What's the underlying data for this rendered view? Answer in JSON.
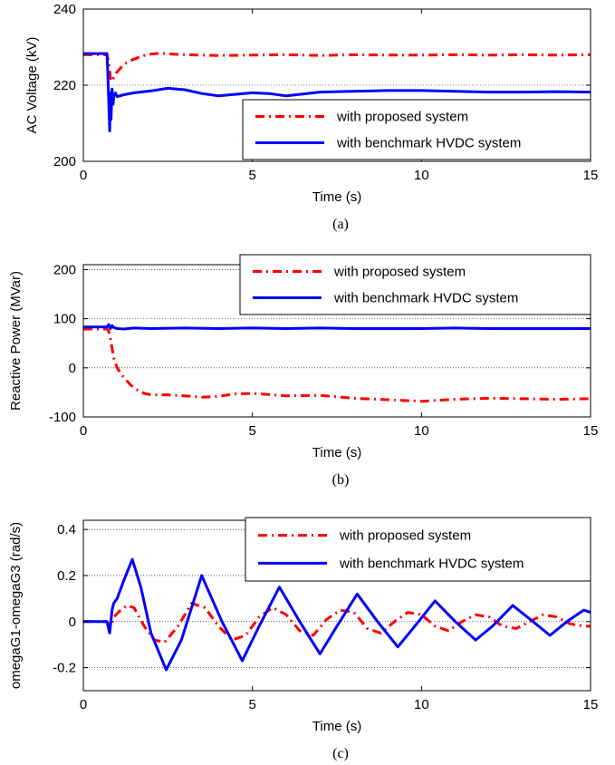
{
  "chart_data": [
    {
      "type": "line",
      "caption": "(a)",
      "xlabel": "Time (s)",
      "ylabel": "AC Voltage (kV)",
      "xlim": [
        0,
        15
      ],
      "ylim": [
        200,
        240
      ],
      "xticks": [
        0,
        5,
        10,
        15
      ],
      "yticks": [
        200,
        220,
        240
      ],
      "grid_y": [
        220
      ],
      "legend_position": "lower-right",
      "series": [
        {
          "name": "with proposed system",
          "color": "#ff0000",
          "style": "dashdot",
          "x": [
            0,
            0.7,
            0.75,
            0.8,
            0.85,
            0.9,
            1.0,
            1.1,
            1.2,
            1.4,
            1.6,
            1.8,
            2.0,
            2.3,
            2.6,
            3.0,
            4.0,
            5.0,
            6.0,
            7.0,
            8.0,
            9.0,
            10.0,
            11.0,
            12.0,
            13.0,
            14.0,
            15.0
          ],
          "y": [
            228,
            228,
            226,
            222,
            221,
            222,
            223.5,
            224.5,
            225.5,
            226.5,
            227.2,
            227.8,
            228.2,
            228.4,
            228.2,
            228.0,
            227.8,
            227.9,
            228.0,
            227.8,
            228.0,
            227.9,
            227.9,
            228.0,
            227.9,
            228.0,
            227.9,
            228.0
          ]
        },
        {
          "name": "with benchmark HVDC system",
          "color": "#0000ff",
          "style": "solid",
          "x": [
            0,
            0.7,
            0.72,
            0.75,
            0.78,
            0.8,
            0.82,
            0.85,
            0.88,
            0.9,
            0.95,
            1.0,
            1.2,
            1.5,
            2.0,
            2.5,
            3.0,
            3.5,
            4.0,
            5.0,
            5.5,
            6.0,
            7.0,
            8.0,
            9.0,
            10.0,
            11.0,
            12.0,
            13.0,
            14.0,
            15.0
          ],
          "y": [
            228.3,
            228.3,
            224,
            216,
            208,
            218,
            211,
            219,
            215,
            217,
            218,
            217,
            217.5,
            218,
            218.5,
            219.2,
            218.8,
            217.8,
            217.2,
            218,
            217.8,
            217.2,
            218.2,
            218.4,
            218.6,
            218.6,
            218.4,
            218.2,
            218.2,
            218.3,
            218.2
          ]
        }
      ]
    },
    {
      "type": "line",
      "caption": "(b)",
      "xlabel": "Time (s)",
      "ylabel": "Reactive Power (MVar)",
      "xlim": [
        0,
        15
      ],
      "ylim": [
        -100,
        210
      ],
      "xticks": [
        0,
        5,
        10,
        15
      ],
      "yticks": [
        -100,
        0,
        100,
        200
      ],
      "grid_y": [
        0,
        100,
        200
      ],
      "legend_position": "top-right",
      "series": [
        {
          "name": "with proposed system",
          "color": "#ff0000",
          "style": "dashdot",
          "x": [
            0,
            0.7,
            0.75,
            0.8,
            0.85,
            0.9,
            1.0,
            1.2,
            1.4,
            1.6,
            1.8,
            2.0,
            2.5,
            3.0,
            3.5,
            4.0,
            4.5,
            5.0,
            6.0,
            7.0,
            8.0,
            9.0,
            10.0,
            11.0,
            12.0,
            13.0,
            14.0,
            15.0
          ],
          "y": [
            79,
            79,
            75,
            60,
            40,
            20,
            0,
            -20,
            -35,
            -45,
            -52,
            -55,
            -55,
            -57,
            -60,
            -58,
            -53,
            -52,
            -57,
            -56,
            -62,
            -65,
            -68,
            -64,
            -62,
            -63,
            -64,
            -63
          ]
        },
        {
          "name": "with benchmark HVDC system",
          "color": "#0000ff",
          "style": "solid",
          "x": [
            0,
            0.7,
            0.75,
            0.8,
            0.85,
            0.9,
            1.0,
            1.2,
            1.5,
            2.0,
            3.0,
            4.0,
            5.0,
            6.0,
            7.0,
            8.0,
            9.0,
            10.0,
            11.0,
            12.0,
            13.0,
            14.0,
            15.0
          ],
          "y": [
            83,
            83,
            88,
            80,
            86,
            82,
            80,
            79,
            81,
            80,
            81,
            80,
            81,
            80,
            81,
            80,
            80,
            80,
            81,
            80,
            80,
            80,
            80
          ]
        }
      ]
    },
    {
      "type": "line",
      "caption": "(c)",
      "xlabel": "Time (s)",
      "ylabel": "omegaG1-omegaG3 (rad/s)",
      "xlim": [
        0,
        15
      ],
      "ylim": [
        -0.3,
        0.44
      ],
      "xticks": [
        0,
        5,
        10,
        15
      ],
      "yticks": [
        -0.2,
        0,
        0.2,
        0.4
      ],
      "grid_y": [
        -0.2,
        0,
        0.2,
        0.4
      ],
      "legend_position": "top-right",
      "series": [
        {
          "name": "with proposed system",
          "color": "#ff0000",
          "style": "dashdot",
          "x": [
            0,
            0.7,
            0.8,
            0.9,
            1.1,
            1.3,
            1.5,
            1.8,
            2.1,
            2.4,
            2.8,
            3.2,
            3.6,
            4.0,
            4.4,
            4.8,
            5.2,
            5.6,
            6.0,
            6.4,
            6.8,
            7.2,
            7.6,
            8.0,
            8.4,
            8.8,
            9.2,
            9.6,
            10.0,
            10.4,
            10.8,
            11.2,
            11.6,
            12.0,
            12.4,
            12.8,
            13.2,
            13.6,
            14.0,
            14.4,
            14.8,
            15.0
          ],
          "y": [
            0,
            0,
            -0.02,
            0.02,
            0.05,
            0.07,
            0.06,
            -0.02,
            -0.08,
            -0.09,
            -0.02,
            0.08,
            0.06,
            -0.02,
            -0.08,
            -0.06,
            0.02,
            0.06,
            0.03,
            -0.04,
            -0.06,
            0.01,
            0.05,
            0.04,
            -0.03,
            -0.05,
            0.0,
            0.04,
            0.03,
            -0.02,
            -0.04,
            0.0,
            0.03,
            0.02,
            -0.02,
            -0.03,
            0.0,
            0.03,
            0.02,
            -0.01,
            -0.02,
            -0.02
          ]
        },
        {
          "name": "with benchmark HVDC system",
          "color": "#0000ff",
          "style": "solid",
          "x": [
            0,
            0.7,
            0.78,
            0.85,
            0.9,
            1.0,
            1.2,
            1.45,
            1.7,
            2.0,
            2.45,
            2.9,
            3.5,
            4.1,
            4.7,
            5.2,
            5.8,
            6.4,
            7.0,
            7.5,
            8.1,
            8.7,
            9.3,
            9.8,
            10.4,
            11.0,
            11.6,
            12.1,
            12.7,
            13.3,
            13.8,
            14.3,
            14.8,
            15.0
          ],
          "y": [
            0,
            0,
            -0.05,
            0.05,
            0.08,
            0.1,
            0.18,
            0.27,
            0.15,
            -0.05,
            -0.21,
            -0.08,
            0.2,
            0.0,
            -0.17,
            -0.02,
            0.15,
            0.0,
            -0.14,
            -0.02,
            0.12,
            0.0,
            -0.11,
            -0.02,
            0.09,
            0.0,
            -0.08,
            -0.02,
            0.07,
            0.0,
            -0.06,
            0.0,
            0.05,
            0.04
          ]
        }
      ]
    }
  ]
}
